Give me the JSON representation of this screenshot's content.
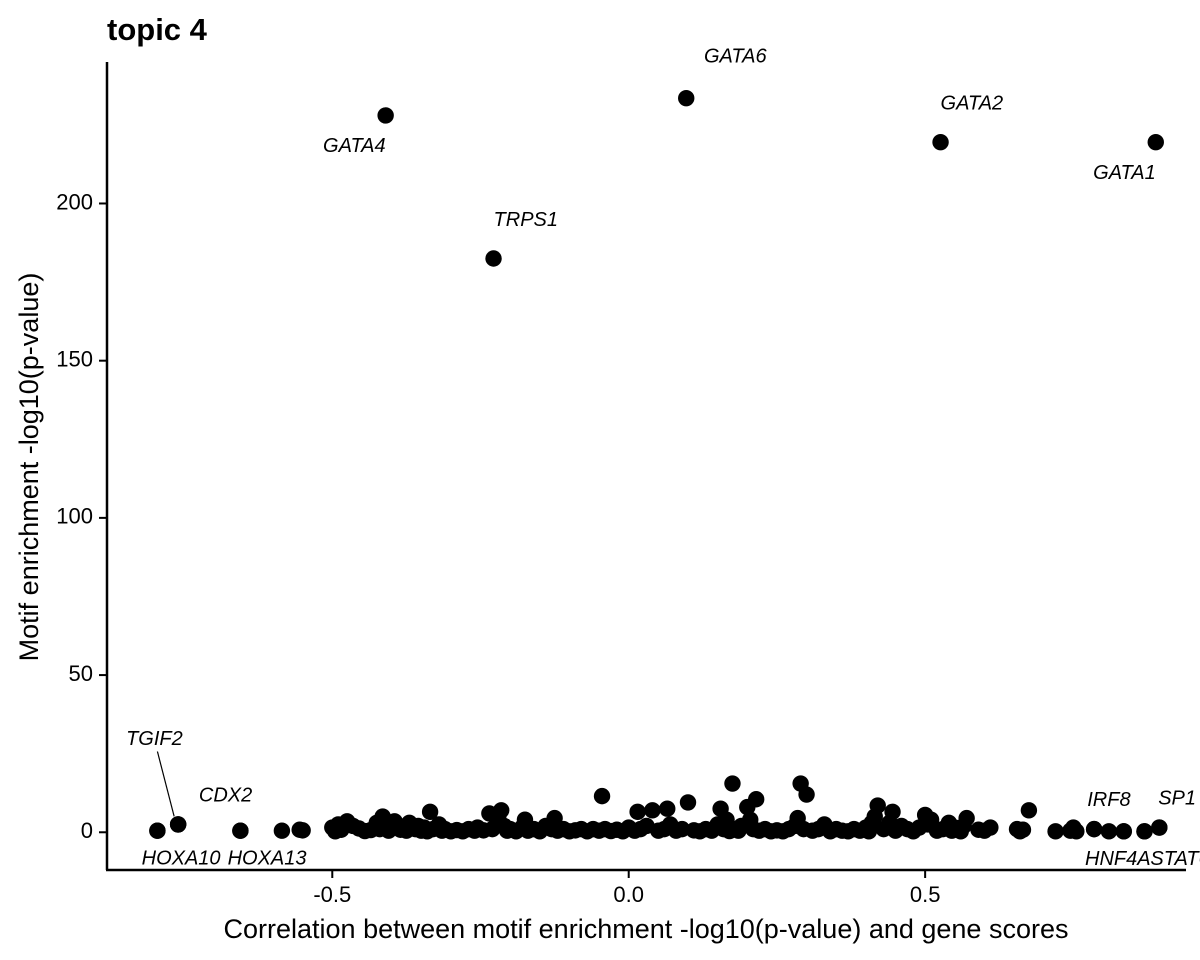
{
  "chart_data": {
    "type": "scatter",
    "title": "topic 4",
    "xlabel": "Correlation between motif enrichment -log10(p-value) and gene scores",
    "ylabel": "Motif enrichment -log10(p-value)",
    "xlim": [
      -0.88,
      0.94
    ],
    "ylim": [
      -12,
      245
    ],
    "x_ticks": [
      -0.5,
      0.0,
      0.5
    ],
    "x_tick_labels": [
      "-0.5",
      "0.0",
      "0.5"
    ],
    "y_ticks": [
      0,
      50,
      100,
      150,
      200
    ],
    "y_tick_labels": [
      "0",
      "50",
      "100",
      "150",
      "200"
    ],
    "grid": false,
    "legend": "none",
    "point_color": "#000000",
    "labeled_points": [
      {
        "label": "GATA6",
        "x": 0.097,
        "y": 233.5,
        "anchor": "start",
        "dx": 0.03,
        "dy": 13
      },
      {
        "label": "GATA4",
        "x": -0.41,
        "y": 228.0,
        "anchor": "end",
        "dx": 0.0,
        "dy": -10
      },
      {
        "label": "GATA2",
        "x": 0.526,
        "y": 219.5,
        "anchor": "start",
        "dx": 0.0,
        "dy": 12
      },
      {
        "label": "GATA1",
        "x": 0.889,
        "y": 219.5,
        "anchor": "end",
        "dx": 0.0,
        "dy": -10
      },
      {
        "label": "TRPS1",
        "x": -0.228,
        "y": 182.5,
        "anchor": "start",
        "dx": 0.0,
        "dy": 12
      },
      {
        "label": "TGIF2",
        "x": -0.76,
        "y": 2.5,
        "anchor": "middle",
        "dx": -0.04,
        "dy": 27
      },
      {
        "label": "CDX2",
        "x": -0.76,
        "y": 2.5,
        "anchor": "start",
        "dx": 0.035,
        "dy": 9
      },
      {
        "label": "HOXA10",
        "x": -0.795,
        "y": 0.5,
        "anchor": "middle",
        "dx": 0.04,
        "dy": -9
      },
      {
        "label": "HOXA13",
        "x": -0.655,
        "y": 0.5,
        "anchor": "middle",
        "dx": 0.045,
        "dy": -9
      },
      {
        "label": "IRF8",
        "x": 0.785,
        "y": 1.0,
        "anchor": "middle",
        "dx": 0.025,
        "dy": 9
      },
      {
        "label": "SP1",
        "x": 0.895,
        "y": 1.5,
        "anchor": "middle",
        "dx": 0.03,
        "dy": 9
      },
      {
        "label": "HNF4A",
        "x": 0.835,
        "y": 0.3,
        "anchor": "middle",
        "dx": -0.01,
        "dy": -9
      },
      {
        "label": "STAT6",
        "x": 0.87,
        "y": 0.3,
        "anchor": "middle",
        "dx": 0.06,
        "dy": -9
      }
    ],
    "points": [
      [
        -0.795,
        0.5
      ],
      [
        -0.76,
        2.5
      ],
      [
        -0.655,
        0.5
      ],
      [
        -0.585,
        0.5
      ],
      [
        -0.555,
        0.8
      ],
      [
        -0.55,
        0.6
      ],
      [
        -0.5,
        1.5
      ],
      [
        -0.495,
        0.3
      ],
      [
        -0.49,
        2.5
      ],
      [
        -0.485,
        0.8
      ],
      [
        -0.475,
        3.5
      ],
      [
        -0.465,
        2.0
      ],
      [
        -0.455,
        1.2
      ],
      [
        -0.445,
        0.4
      ],
      [
        -0.435,
        0.7
      ],
      [
        -0.425,
        3.0
      ],
      [
        -0.42,
        1.0
      ],
      [
        -0.415,
        5.0
      ],
      [
        -0.41,
        2.0
      ],
      [
        -0.405,
        0.5
      ],
      [
        -0.4,
        1.5
      ],
      [
        -0.395,
        3.5
      ],
      [
        -0.39,
        2.0
      ],
      [
        -0.385,
        0.8
      ],
      [
        -0.38,
        1.8
      ],
      [
        -0.375,
        0.5
      ],
      [
        -0.37,
        3.0
      ],
      [
        -0.36,
        1.0
      ],
      [
        -0.355,
        2.0
      ],
      [
        -0.35,
        0.5
      ],
      [
        -0.345,
        1.5
      ],
      [
        -0.34,
        0.3
      ],
      [
        -0.335,
        6.5
      ],
      [
        -0.33,
        1.0
      ],
      [
        -0.32,
        2.5
      ],
      [
        -0.315,
        0.5
      ],
      [
        -0.31,
        1.0
      ],
      [
        -0.3,
        0.3
      ],
      [
        -0.29,
        0.7
      ],
      [
        -0.28,
        0.3
      ],
      [
        -0.27,
        1.0
      ],
      [
        -0.26,
        0.5
      ],
      [
        -0.255,
        1.5
      ],
      [
        -0.245,
        0.6
      ],
      [
        -0.235,
        6.0
      ],
      [
        -0.23,
        1.0
      ],
      [
        -0.22,
        5.0
      ],
      [
        -0.215,
        7.0
      ],
      [
        -0.21,
        2.0
      ],
      [
        -0.205,
        0.5
      ],
      [
        -0.2,
        1.0
      ],
      [
        -0.19,
        0.3
      ],
      [
        -0.18,
        1.5
      ],
      [
        -0.175,
        4.0
      ],
      [
        -0.17,
        0.5
      ],
      [
        -0.16,
        1.0
      ],
      [
        -0.15,
        0.3
      ],
      [
        -0.14,
        2.0
      ],
      [
        -0.13,
        1.0
      ],
      [
        -0.125,
        4.5
      ],
      [
        -0.12,
        0.5
      ],
      [
        -0.11,
        1.0
      ],
      [
        -0.1,
        0.3
      ],
      [
        -0.09,
        0.6
      ],
      [
        -0.08,
        1.0
      ],
      [
        -0.07,
        0.3
      ],
      [
        -0.06,
        1.0
      ],
      [
        -0.05,
        0.5
      ],
      [
        -0.045,
        11.5
      ],
      [
        -0.04,
        1.0
      ],
      [
        -0.03,
        0.4
      ],
      [
        -0.02,
        0.8
      ],
      [
        -0.01,
        0.3
      ],
      [
        0.0,
        1.5
      ],
      [
        0.01,
        0.5
      ],
      [
        0.015,
        6.5
      ],
      [
        0.02,
        1.0
      ],
      [
        0.03,
        2.0
      ],
      [
        0.04,
        7.0
      ],
      [
        0.05,
        0.5
      ],
      [
        0.06,
        1.0
      ],
      [
        0.065,
        7.5
      ],
      [
        0.07,
        2.5
      ],
      [
        0.08,
        0.5
      ],
      [
        0.09,
        1.0
      ],
      [
        0.1,
        9.5
      ],
      [
        0.11,
        0.6
      ],
      [
        0.12,
        0.3
      ],
      [
        0.13,
        1.0
      ],
      [
        0.14,
        0.5
      ],
      [
        0.15,
        2.5
      ],
      [
        0.155,
        7.5
      ],
      [
        0.16,
        1.0
      ],
      [
        0.165,
        4.0
      ],
      [
        0.17,
        0.4
      ],
      [
        0.175,
        15.5
      ],
      [
        0.18,
        1.0
      ],
      [
        0.185,
        0.5
      ],
      [
        0.19,
        2.0
      ],
      [
        0.2,
        8.0
      ],
      [
        0.205,
        4.0
      ],
      [
        0.21,
        1.0
      ],
      [
        0.215,
        10.5
      ],
      [
        0.22,
        0.5
      ],
      [
        0.23,
        1.0
      ],
      [
        0.24,
        0.3
      ],
      [
        0.25,
        0.6
      ],
      [
        0.26,
        0.3
      ],
      [
        0.27,
        1.0
      ],
      [
        0.28,
        2.0
      ],
      [
        0.285,
        4.5
      ],
      [
        0.29,
        15.5
      ],
      [
        0.295,
        1.0
      ],
      [
        0.3,
        12.0
      ],
      [
        0.31,
        0.5
      ],
      [
        0.32,
        1.0
      ],
      [
        0.33,
        2.5
      ],
      [
        0.34,
        0.3
      ],
      [
        0.35,
        1.0
      ],
      [
        0.36,
        0.5
      ],
      [
        0.37,
        0.3
      ],
      [
        0.38,
        1.0
      ],
      [
        0.39,
        0.5
      ],
      [
        0.4,
        1.5
      ],
      [
        0.405,
        0.3
      ],
      [
        0.41,
        3.0
      ],
      [
        0.415,
        5.0
      ],
      [
        0.42,
        8.5
      ],
      [
        0.43,
        1.0
      ],
      [
        0.44,
        3.0
      ],
      [
        0.445,
        6.5
      ],
      [
        0.45,
        0.5
      ],
      [
        0.46,
        2.0
      ],
      [
        0.47,
        1.0
      ],
      [
        0.48,
        0.3
      ],
      [
        0.49,
        1.5
      ],
      [
        0.5,
        5.5
      ],
      [
        0.505,
        2.5
      ],
      [
        0.51,
        4.0
      ],
      [
        0.52,
        0.5
      ],
      [
        0.53,
        1.0
      ],
      [
        0.54,
        3.0
      ],
      [
        0.545,
        0.5
      ],
      [
        0.55,
        1.5
      ],
      [
        0.56,
        0.3
      ],
      [
        0.565,
        2.0
      ],
      [
        0.57,
        4.5
      ],
      [
        0.59,
        0.8
      ],
      [
        0.6,
        0.5
      ],
      [
        0.61,
        1.5
      ],
      [
        0.655,
        1.0
      ],
      [
        0.66,
        0.3
      ],
      [
        0.665,
        0.8
      ],
      [
        0.675,
        7.0
      ],
      [
        0.72,
        0.3
      ],
      [
        0.745,
        0.5
      ],
      [
        0.75,
        1.5
      ],
      [
        0.755,
        0.3
      ],
      [
        0.785,
        1.0
      ],
      [
        0.81,
        0.3
      ],
      [
        0.835,
        0.3
      ],
      [
        0.87,
        0.3
      ],
      [
        0.895,
        1.5
      ]
    ]
  }
}
